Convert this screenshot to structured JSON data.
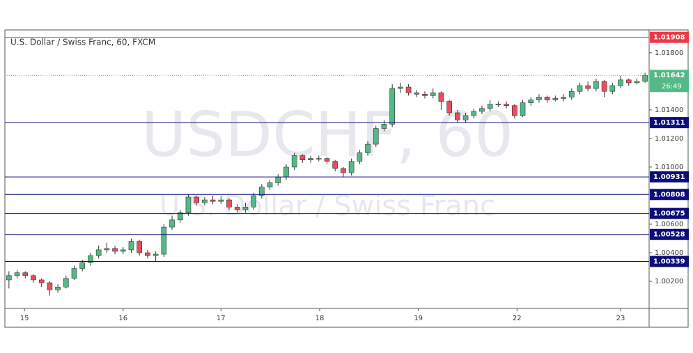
{
  "chart_data": {
    "type": "candlestick",
    "title": "U.S. Dollar / Swiss Franc, 60, FXCM",
    "watermark": "USDCHF, 60",
    "watermark_subtitle": "U.S. Dollar / Swiss Franc",
    "up_color": "#53b987",
    "down_color": "#eb4d5c",
    "open": [
      1.0021,
      1.0024,
      1.0026,
      1.0024,
      1.0021,
      1.0019,
      1.0014,
      1.0016,
      1.0022,
      1.0029,
      1.0033,
      1.0038,
      1.0042,
      1.0043,
      1.0041,
      1.0042,
      1.0048,
      1.004,
      1.0038,
      1.0039,
      1.0058,
      1.0063,
      1.0068,
      1.0079,
      1.0075,
      1.0077,
      1.0076,
      1.0077,
      1.0072,
      1.007,
      1.0072,
      1.008,
      1.0086,
      1.0089,
      1.0093,
      1.01,
      1.0108,
      1.0105,
      1.0106,
      1.0106,
      1.0104,
      1.0099,
      1.0096,
      1.0104,
      1.011,
      1.0116,
      1.0127,
      1.013,
      1.0155,
      1.0156,
      1.0152,
      1.0151,
      1.015,
      1.0152,
      1.0146,
      1.0138,
      1.0133,
      1.0136,
      1.0139,
      1.0141,
      1.0144,
      1.0144,
      1.0143,
      1.0136,
      1.0145,
      1.0147,
      1.0149,
      1.0147,
      1.0148,
      1.0149,
      1.0153,
      1.0157,
      1.0155,
      1.016,
      1.0153,
      1.0157,
      1.0161,
      1.0159,
      1.016
    ],
    "high": [
      1.0027,
      1.0028,
      1.0027,
      1.0025,
      1.0022,
      1.002,
      1.0018,
      1.0024,
      1.0031,
      1.0035,
      1.004,
      1.0045,
      1.0047,
      1.0045,
      1.0044,
      1.005,
      1.0049,
      1.0042,
      1.0041,
      1.006,
      1.0066,
      1.007,
      1.0081,
      1.008,
      1.0079,
      1.008,
      1.008,
      1.0078,
      1.0074,
      1.0075,
      1.0082,
      1.0088,
      1.0091,
      1.0095,
      1.0102,
      1.011,
      1.0109,
      1.0108,
      1.0108,
      1.0107,
      1.0105,
      1.01,
      1.0106,
      1.0112,
      1.0118,
      1.0129,
      1.0133,
      1.0158,
      1.0159,
      1.0158,
      1.0154,
      1.0153,
      1.0155,
      1.0153,
      1.0147,
      1.014,
      1.0138,
      1.0141,
      1.0143,
      1.0147,
      1.0146,
      1.0146,
      1.0144,
      1.0147,
      1.0149,
      1.0151,
      1.015,
      1.015,
      1.0151,
      1.0155,
      1.0159,
      1.016,
      1.0162,
      1.0161,
      1.0159,
      1.0164,
      1.0162,
      1.0162,
      1.0166
    ],
    "low": [
      1.0015,
      1.0022,
      1.0022,
      1.0019,
      1.0016,
      1.001,
      1.0012,
      1.0015,
      1.0021,
      1.0027,
      1.0031,
      1.0036,
      1.004,
      1.0039,
      1.0039,
      1.004,
      1.0038,
      1.0036,
      1.0034,
      1.0037,
      1.0056,
      1.0061,
      1.0066,
      1.0073,
      1.0073,
      1.0074,
      1.0074,
      1.007,
      1.0068,
      1.0068,
      1.007,
      1.0078,
      1.0084,
      1.0087,
      1.0091,
      1.0098,
      1.0103,
      1.0103,
      1.0104,
      1.0102,
      1.0097,
      1.0093,
      1.0094,
      1.0102,
      1.0108,
      1.0114,
      1.0125,
      1.0128,
      1.0152,
      1.015,
      1.0149,
      1.0148,
      1.0148,
      1.014,
      1.0136,
      1.0131,
      1.0131,
      1.0134,
      1.0137,
      1.0139,
      1.0142,
      1.0141,
      1.0134,
      1.0135,
      1.0143,
      1.0145,
      1.0145,
      1.0146,
      1.0146,
      1.0147,
      1.0151,
      1.0153,
      1.0153,
      1.0149,
      1.0151,
      1.0155,
      1.0157,
      1.0158,
      1.0159
    ],
    "close": [
      1.0024,
      1.0026,
      1.0024,
      1.0021,
      1.0019,
      1.0014,
      1.0016,
      1.0022,
      1.0029,
      1.0033,
      1.0038,
      1.0042,
      1.0043,
      1.0041,
      1.0042,
      1.0048,
      1.004,
      1.0038,
      1.0039,
      1.0058,
      1.0063,
      1.0068,
      1.0079,
      1.0075,
      1.0077,
      1.0076,
      1.0077,
      1.0072,
      1.007,
      1.0072,
      1.008,
      1.0086,
      1.0089,
      1.0093,
      1.01,
      1.0108,
      1.0105,
      1.0106,
      1.0106,
      1.0104,
      1.0099,
      1.0096,
      1.0104,
      1.011,
      1.0116,
      1.0127,
      1.013,
      1.0155,
      1.0156,
      1.0152,
      1.0151,
      1.015,
      1.0152,
      1.0146,
      1.0138,
      1.0133,
      1.0136,
      1.0139,
      1.0141,
      1.0144,
      1.0144,
      1.0143,
      1.0136,
      1.0145,
      1.0147,
      1.0149,
      1.0147,
      1.0148,
      1.0149,
      1.0153,
      1.0157,
      1.0155,
      1.016,
      1.0153,
      1.0157,
      1.0161,
      1.0159,
      1.016,
      1.01642
    ],
    "xlim": [
      -0.5,
      78.5
    ],
    "xticks": [
      {
        "value": 1.9,
        "label": "15"
      },
      {
        "value": 14.0,
        "label": "16"
      },
      {
        "value": 26.0,
        "label": "17"
      },
      {
        "value": 38.1,
        "label": "18"
      },
      {
        "value": 50.2,
        "label": "19"
      },
      {
        "value": 62.3,
        "label": "22"
      },
      {
        "value": 75.0,
        "label": "23"
      }
    ],
    "ylim": [
      1.0001,
      1.0196
    ],
    "yticks": [
      {
        "value": 1.018,
        "label": "1.01800"
      },
      {
        "value": 1.014,
        "label": "1.01400"
      },
      {
        "value": 1.012,
        "label": "1.01200"
      },
      {
        "value": 1.01,
        "label": "1.01000"
      },
      {
        "value": 1.006,
        "label": "1.00600"
      },
      {
        "value": 1.004,
        "label": "1.00400"
      },
      {
        "value": 1.002,
        "label": "1.00200"
      }
    ],
    "levels": [
      {
        "value": 1.01908,
        "color": "#f23645"
      },
      {
        "value": 1.01311,
        "color": "#0c0c7a"
      },
      {
        "value": 1.00931,
        "color": "#0c0c7a"
      },
      {
        "value": 1.00808,
        "color": "#0c0c7a"
      },
      {
        "value": 1.00675,
        "color": "#0c0c7a"
      },
      {
        "value": 1.00528,
        "color": "#0c0c7a"
      },
      {
        "value": 1.00339,
        "color": "#0c0c7a"
      }
    ],
    "current_price": {
      "value": 1.01642,
      "countdown": "26:49",
      "color": "#53b987"
    }
  }
}
